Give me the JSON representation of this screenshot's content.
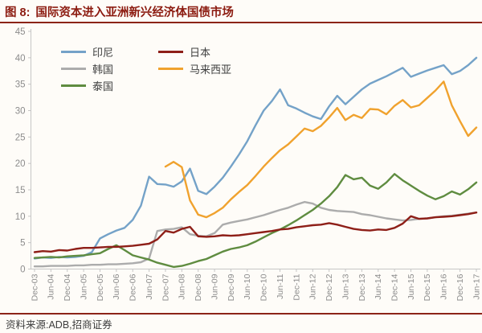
{
  "header": {
    "figure_label": "图 8:",
    "title": "国际资本进入亚洲新兴经济体国债市场"
  },
  "footer": {
    "source": "资料来源:ADB,招商证券"
  },
  "colors": {
    "accent_dark_red": "#8C2418",
    "title_text": "#8C1B10",
    "axis_line": "#C6C6C6",
    "axis_text": "#8C8C8C",
    "legend_text": "#3F3F3F",
    "background": "#FEFCF8"
  },
  "chart_data": {
    "type": "line",
    "title": "国际资本进入亚洲新兴经济体国债市场",
    "xlabel": "",
    "ylabel": "",
    "ylim": [
      0,
      45
    ],
    "y_axis": {
      "min": 0,
      "max": 45,
      "step": 5
    },
    "grid": false,
    "legend_position": "top-left-inside",
    "x_tick_every": 2,
    "x_labels": [
      "Dec-03",
      "Mar-04",
      "Jun-04",
      "Sep-04",
      "Dec-04",
      "Mar-05",
      "Jun-05",
      "Sep-05",
      "Dec-05",
      "Mar-06",
      "Jun-06",
      "Sep-06",
      "Dec-06",
      "Mar-07",
      "Jun-07",
      "Sep-07",
      "Dec-07",
      "Mar-08",
      "Jun-08",
      "Sep-08",
      "Dec-08",
      "Mar-09",
      "Jun-09",
      "Sep-09",
      "Dec-09",
      "Mar-10",
      "Jun-10",
      "Sep-10",
      "Dec-10",
      "Mar-11",
      "Jun-11",
      "Sep-11",
      "Dec-11",
      "Mar-12",
      "Jun-12",
      "Sep-12",
      "Dec-12",
      "Mar-13",
      "Jun-13",
      "Sep-13",
      "Dec-13",
      "Mar-14",
      "Jun-14",
      "Sep-14",
      "Dec-14",
      "Mar-15",
      "Jun-15",
      "Sep-15",
      "Dec-15",
      "Mar-16",
      "Jun-16",
      "Sep-16",
      "Dec-16",
      "Mar-17",
      "Jun-17"
    ],
    "series": [
      {
        "key": "indonesia",
        "name": "印尼",
        "color": "#74A2C8",
        "values": [
          2.0,
          2.2,
          2.1,
          2.3,
          2.2,
          2.3,
          2.5,
          3.2,
          5.8,
          6.6,
          7.3,
          7.8,
          9.3,
          12.0,
          17.5,
          16.1,
          16.0,
          15.6,
          16.6,
          19.0,
          14.8,
          14.2,
          15.6,
          17.3,
          19.4,
          21.7,
          24.2,
          27.2,
          30.0,
          31.8,
          34.0,
          31.0,
          30.4,
          29.6,
          28.9,
          28.4,
          30.8,
          32.8,
          31.2,
          32.6,
          34.0,
          35.1,
          35.8,
          36.5,
          37.3,
          38.1,
          36.4,
          37.0,
          37.6,
          38.1,
          38.6,
          36.9,
          37.5,
          38.6,
          40.0
        ]
      },
      {
        "key": "korea",
        "name": "韩国",
        "color": "#ACACAC",
        "values": [
          0.5,
          0.5,
          0.6,
          0.6,
          0.6,
          0.7,
          0.7,
          0.8,
          0.8,
          0.9,
          0.9,
          1.0,
          1.1,
          1.3,
          2.0,
          7.2,
          7.5,
          7.6,
          7.9,
          6.6,
          6.3,
          6.2,
          6.8,
          8.4,
          8.8,
          9.1,
          9.4,
          9.8,
          10.2,
          10.7,
          11.2,
          11.6,
          12.2,
          12.7,
          12.4,
          11.6,
          11.2,
          11.0,
          10.9,
          10.8,
          10.4,
          10.2,
          9.9,
          9.6,
          9.4,
          9.2,
          9.3,
          9.5,
          9.6,
          9.8,
          10.0,
          10.1,
          10.3,
          10.5,
          10.7
        ]
      },
      {
        "key": "thailand",
        "name": "泰国",
        "color": "#5F8C40",
        "values": [
          2.1,
          2.2,
          2.3,
          2.2,
          2.4,
          2.5,
          2.6,
          2.8,
          3.0,
          3.8,
          4.5,
          3.6,
          2.6,
          2.2,
          1.8,
          1.2,
          0.8,
          0.4,
          0.6,
          1.0,
          1.5,
          1.9,
          2.6,
          3.3,
          3.8,
          4.1,
          4.5,
          5.2,
          6.0,
          6.8,
          7.5,
          8.3,
          9.2,
          10.2,
          11.2,
          12.4,
          13.8,
          15.5,
          17.8,
          17.0,
          17.3,
          15.8,
          15.2,
          16.4,
          18.0,
          16.8,
          15.8,
          14.8,
          13.9,
          13.2,
          13.8,
          14.7,
          14.1,
          15.1,
          16.4
        ]
      },
      {
        "key": "japan",
        "name": "日本",
        "color": "#8E1F18",
        "values": [
          3.2,
          3.4,
          3.3,
          3.6,
          3.5,
          3.8,
          4.0,
          4.0,
          4.1,
          4.2,
          4.2,
          4.3,
          4.4,
          4.6,
          4.8,
          5.6,
          7.2,
          6.9,
          7.6,
          8.0,
          6.2,
          6.1,
          6.2,
          6.4,
          6.3,
          6.4,
          6.6,
          6.8,
          7.0,
          7.2,
          7.5,
          7.6,
          7.9,
          8.1,
          8.3,
          8.4,
          8.7,
          8.4,
          8.0,
          7.6,
          7.4,
          7.3,
          7.5,
          7.4,
          7.8,
          8.6,
          10.0,
          9.5,
          9.6,
          9.8,
          9.9,
          10.0,
          10.2,
          10.4,
          10.7
        ]
      },
      {
        "key": "malaysia",
        "name": "马来西亚",
        "color": "#F0A22E",
        "values": [
          null,
          null,
          null,
          null,
          null,
          null,
          null,
          null,
          null,
          null,
          null,
          null,
          null,
          null,
          null,
          null,
          19.4,
          20.3,
          19.3,
          13.0,
          10.3,
          9.8,
          10.6,
          11.6,
          13.2,
          14.6,
          15.9,
          17.6,
          19.4,
          21.0,
          22.5,
          23.6,
          25.1,
          26.6,
          26.1,
          27.1,
          28.7,
          30.5,
          28.2,
          29.2,
          28.6,
          30.3,
          30.2,
          29.3,
          30.9,
          32.0,
          30.6,
          31.0,
          32.4,
          33.8,
          35.5,
          31.0,
          28.0,
          25.2,
          26.8
        ]
      }
    ]
  }
}
